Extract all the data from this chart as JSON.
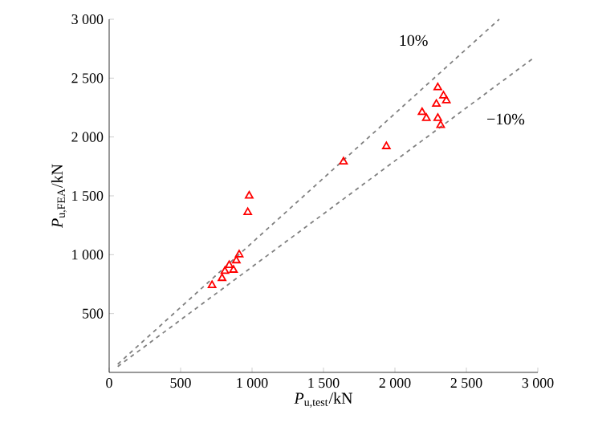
{
  "chart_data": {
    "type": "scatter",
    "xlabel": "*P*$_{u,test}$/kN",
    "ylabel": "*P*$_{u,FEA}$/kN",
    "xlim": [
      0,
      3000
    ],
    "ylim": [
      0,
      3000
    ],
    "xticks": [
      0,
      500,
      {
        "value": 1000,
        "label": "1 000"
      },
      {
        "value": 1500,
        "label": "1 500"
      },
      {
        "value": 2000,
        "label": "2 000"
      },
      {
        "value": 2500,
        "label": "2 500"
      },
      {
        "value": 3000,
        "label": "3 000"
      }
    ],
    "yticks": [
      500,
      {
        "value": 1000,
        "label": "1 000"
      },
      {
        "value": 1500,
        "label": "1 500"
      },
      {
        "value": 2000,
        "label": "2 000"
      },
      {
        "value": 2500,
        "label": "2 500"
      },
      {
        "value": 3000,
        "label": "3 000"
      }
    ],
    "grid": false,
    "series": [
      {
        "color": "#ff0000",
        "marker": "triangle",
        "x": [
          980,
          970,
          910,
          890,
          840,
          870,
          810,
          790,
          720,
          2300,
          2340,
          2360,
          2290,
          2190,
          2220,
          2300,
          2320,
          1940,
          1640
        ],
        "values": [
          1500,
          1360,
          1000,
          950,
          910,
          870,
          860,
          800,
          740,
          2420,
          2350,
          2310,
          2280,
          2210,
          2160,
          2160,
          2100,
          1920,
          1790
        ]
      },
      {
        "type": "line",
        "color": "#808080",
        "line_style": "dashed",
        "marker": "none",
        "x": [
          60,
          2730
        ],
        "values": [
          70,
          3000
        ]
      },
      {
        "type": "line",
        "color": "#808080",
        "line_style": "dashed",
        "marker": "none",
        "x": [
          60,
          2980
        ],
        "values": [
          50,
          2680
        ]
      }
    ],
    "annotations": [
      "10%",
      "−10%"
    ]
  }
}
